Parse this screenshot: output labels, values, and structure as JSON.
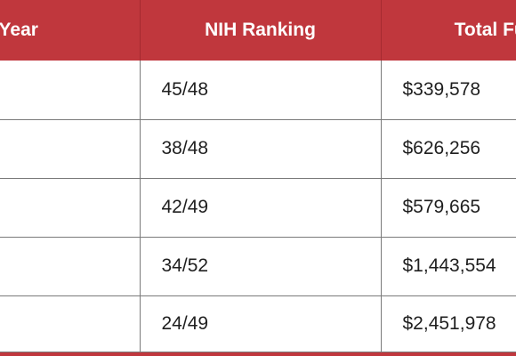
{
  "table": {
    "headers": [
      "Year",
      "NIH Ranking",
      "Total Funding"
    ],
    "rows": [
      {
        "ranking": "45/48",
        "funding": "$339,578"
      },
      {
        "ranking": "38/48",
        "funding": "$626,256"
      },
      {
        "ranking": "42/49",
        "funding": "$579,665"
      },
      {
        "ranking": "34/52",
        "funding": "$1,443,554"
      },
      {
        "ranking": "24/49",
        "funding": "$2,451,978"
      }
    ]
  },
  "colors": {
    "header_bg": "#c0373d",
    "header_text": "#ffffff",
    "grid": "#7a7a7a",
    "body_text": "#1f1f1f"
  }
}
